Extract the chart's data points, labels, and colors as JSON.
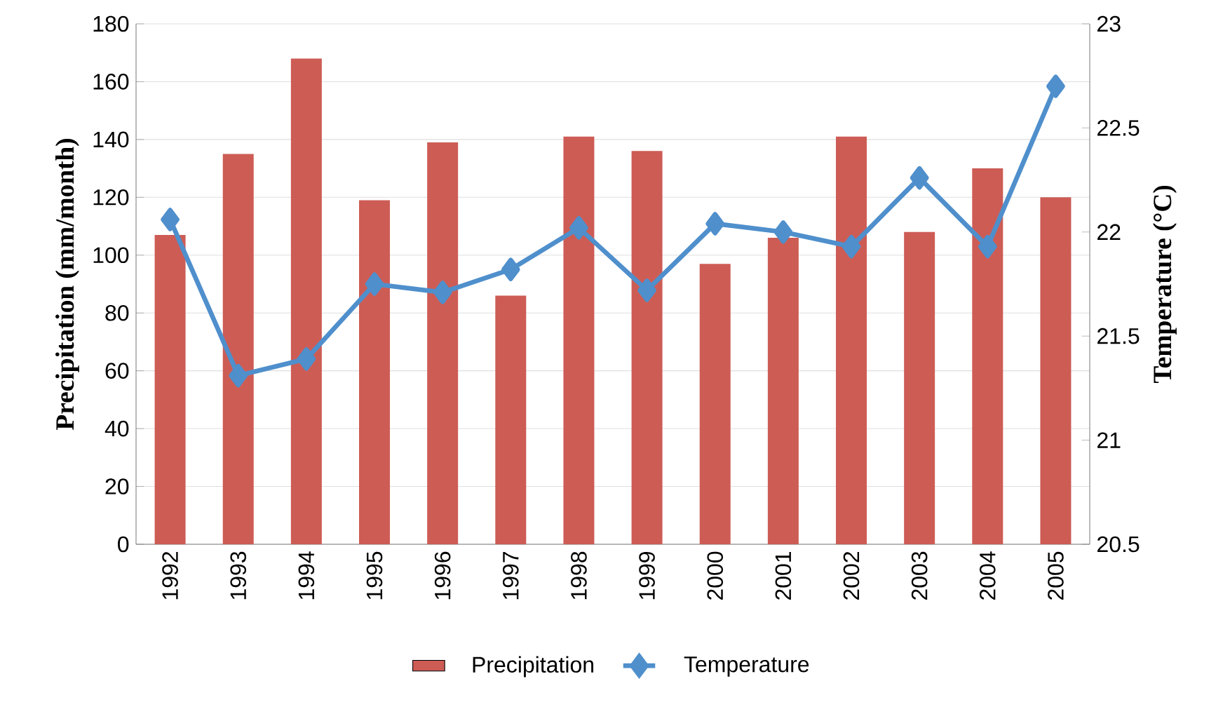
{
  "chart_data": {
    "type": "bar",
    "categories": [
      "1992",
      "1993",
      "1994",
      "1995",
      "1996",
      "1997",
      "1998",
      "1999",
      "2000",
      "2001",
      "2002",
      "2003",
      "2004",
      "2005"
    ],
    "series": [
      {
        "name": "Precipitation",
        "color": "#cd5c55",
        "values": [
          107,
          135,
          168,
          119,
          139,
          86,
          141,
          136,
          97,
          106,
          141,
          108,
          130,
          120
        ]
      },
      {
        "name": "Temperature",
        "type": "line",
        "axis": "y2",
        "color": "#4f8fcc",
        "values": [
          22.06,
          21.31,
          21.39,
          21.75,
          21.71,
          21.82,
          22.02,
          21.72,
          22.04,
          22.0,
          21.93,
          22.26,
          21.93,
          22.7
        ]
      }
    ],
    "ylabel": "Precipitation (mm/month)",
    "y2label": "Temperature (°C)",
    "ylim": [
      0,
      180
    ],
    "yticks": [
      0,
      20,
      40,
      60,
      80,
      100,
      120,
      140,
      160,
      180
    ],
    "y2lim": [
      20.5,
      23
    ],
    "y2ticks": [
      20.5,
      21,
      21.5,
      22,
      22.5,
      23
    ],
    "grid": "y",
    "legend": "bottom",
    "marker": "diamond",
    "line_style": "solid"
  }
}
